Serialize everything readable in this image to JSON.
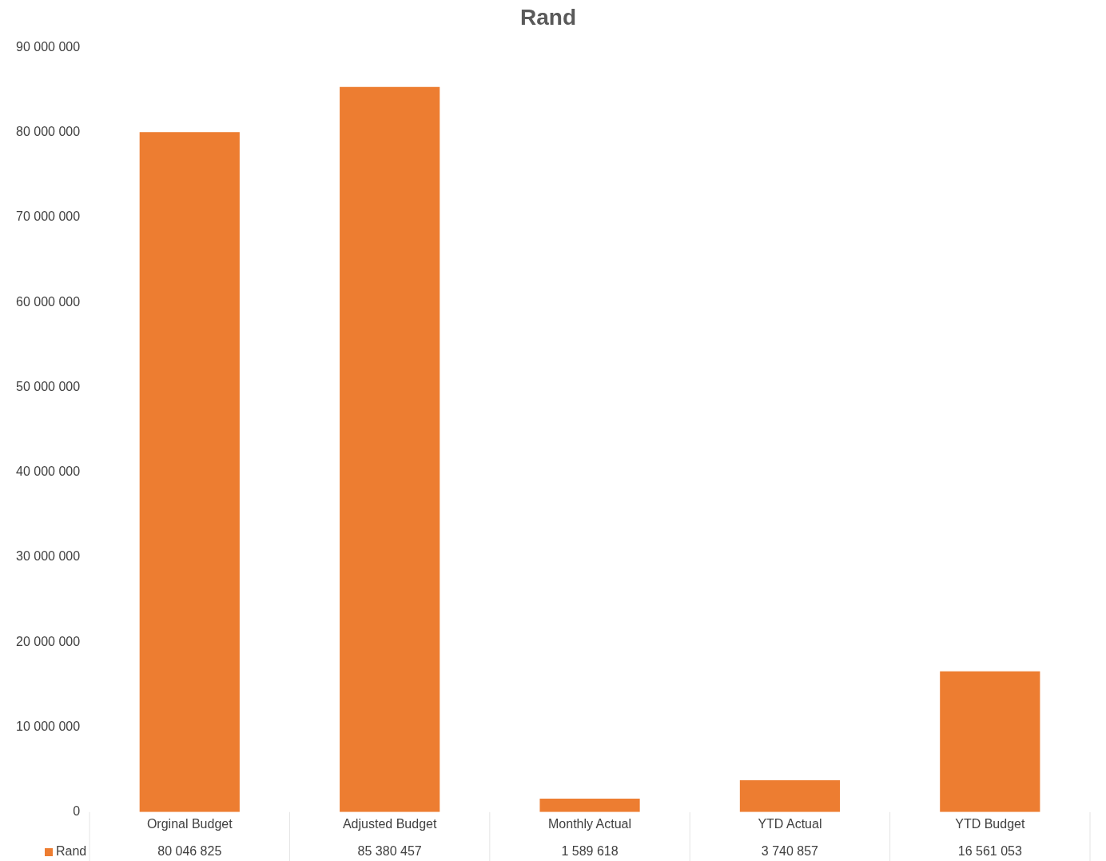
{
  "chart_data": {
    "type": "bar",
    "title": "Rand",
    "categories": [
      "Orginal Budget",
      "Adjusted Budget",
      "Monthly Actual",
      "YTD Actual",
      "YTD Budget"
    ],
    "series": [
      {
        "name": "Rand",
        "color": "#ed7d31",
        "values": [
          80046825,
          85380457,
          1589618,
          3740857,
          16561053
        ],
        "value_labels": [
          "80 046 825",
          "85 380 457",
          "1 589 618",
          "3 740 857",
          "16 561 053"
        ]
      }
    ],
    "ylim": [
      0,
      90000000
    ],
    "yticks": [
      {
        "value": 0,
        "label": "0"
      },
      {
        "value": 10000000,
        "label": "10 000 000"
      },
      {
        "value": 20000000,
        "label": "20 000 000"
      },
      {
        "value": 30000000,
        "label": "30 000 000"
      },
      {
        "value": 40000000,
        "label": "40 000 000"
      },
      {
        "value": 50000000,
        "label": "50 000 000"
      },
      {
        "value": 60000000,
        "label": "60 000 000"
      },
      {
        "value": 70000000,
        "label": "70 000 000"
      },
      {
        "value": 80000000,
        "label": "80 000 000"
      },
      {
        "value": 90000000,
        "label": "90 000 000"
      }
    ],
    "legend": "bottom"
  }
}
